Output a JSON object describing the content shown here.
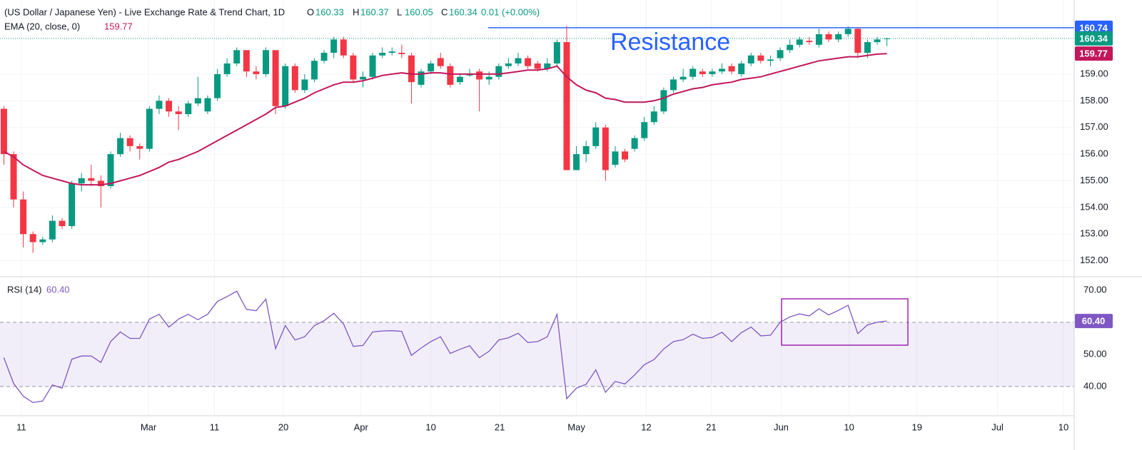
{
  "chart_data": {
    "type": "candlestick",
    "title": "(US Dollar / Japanese Yen) - Live Exchange Rate & Trend Chart, 1D",
    "ohlc_labels": [
      "O",
      "H",
      "L",
      "C"
    ],
    "ohlc_values": [
      160.33,
      160.37,
      160.05,
      160.34
    ],
    "change": 0.01,
    "change_pct": "(+0.00%)",
    "up_color": "#089981",
    "down_color": "#f23645",
    "open": [
      157.7,
      156.0,
      154.3,
      153.0,
      152.7,
      152.8,
      153.5,
      153.3,
      154.9,
      155.1,
      155.0,
      154.8,
      156.0,
      156.6,
      156.3,
      156.2,
      157.7,
      158.0,
      157.6,
      157.5,
      157.9,
      157.6,
      158.1,
      159.0,
      159.4,
      159.9,
      159.1,
      159.0,
      159.9,
      157.8,
      159.3,
      158.4,
      158.8,
      159.5,
      159.8,
      160.3,
      159.7,
      158.8,
      158.9,
      159.7,
      159.8,
      159.8,
      159.7,
      158.6,
      159.1,
      159.6,
      159.3,
      158.7,
      158.95,
      159.1,
      158.8,
      158.9,
      159.3,
      159.4,
      159.6,
      159.4,
      159.2,
      159.4,
      160.2,
      155.4,
      156.0,
      156.3,
      157.0,
      155.6,
      156.1,
      156.2,
      156.6,
      157.2,
      157.6,
      158.4,
      158.8,
      158.9,
      159.1,
      159.0,
      159.1,
      159.3,
      159.0,
      159.4,
      159.7,
      159.5,
      159.6,
      159.9,
      160.1,
      160.25,
      160.1,
      160.5,
      160.3,
      160.5,
      160.7,
      159.8,
      160.2,
      160.33
    ],
    "high": [
      157.8,
      156.1,
      154.6,
      153.1,
      152.9,
      153.7,
      153.6,
      155.0,
      155.3,
      155.6,
      155.2,
      156.1,
      156.8,
      156.7,
      156.4,
      157.8,
      158.2,
      158.1,
      157.8,
      158.0,
      158.9,
      158.2,
      159.2,
      159.6,
      160.0,
      159.9,
      159.3,
      160.0,
      159.9,
      159.4,
      159.4,
      159.0,
      159.6,
      159.9,
      160.4,
      160.4,
      159.8,
      159.1,
      159.8,
      160.0,
      160.0,
      160.1,
      159.8,
      159.2,
      159.5,
      159.8,
      159.4,
      159.0,
      159.2,
      159.2,
      159.1,
      159.4,
      159.6,
      159.8,
      159.7,
      159.5,
      159.6,
      160.3,
      160.8,
      156.3,
      156.5,
      157.2,
      157.1,
      156.3,
      156.2,
      156.7,
      157.4,
      157.8,
      158.5,
      158.9,
      159.2,
      159.3,
      159.2,
      159.2,
      159.4,
      159.4,
      159.5,
      159.8,
      159.8,
      159.7,
      160.0,
      160.3,
      160.4,
      160.4,
      160.7,
      160.6,
      160.6,
      160.8,
      160.75,
      160.3,
      160.4,
      160.37
    ],
    "low": [
      155.6,
      154.0,
      152.5,
      152.3,
      152.6,
      152.7,
      153.2,
      153.2,
      154.6,
      154.8,
      154.0,
      154.7,
      155.9,
      156.1,
      155.8,
      156.1,
      157.5,
      157.4,
      156.9,
      157.4,
      157.8,
      157.5,
      158.0,
      158.9,
      159.3,
      158.9,
      158.8,
      158.9,
      157.5,
      157.7,
      158.3,
      158.3,
      158.7,
      159.4,
      159.6,
      159.6,
      158.7,
      158.5,
      158.8,
      159.6,
      159.7,
      159.6,
      157.9,
      158.5,
      159.0,
      159.2,
      158.5,
      158.6,
      158.9,
      157.6,
      158.6,
      158.8,
      159.2,
      159.3,
      159.2,
      159.1,
      159.1,
      159.3,
      155.5,
      155.5,
      155.7,
      156.2,
      155.0,
      155.5,
      155.7,
      156.1,
      156.5,
      157.1,
      157.5,
      158.3,
      158.7,
      158.8,
      158.9,
      158.9,
      159.0,
      159.0,
      158.9,
      159.3,
      159.4,
      159.3,
      159.5,
      159.8,
      160.0,
      160.1,
      160.0,
      160.2,
      160.2,
      160.4,
      159.6,
      159.6,
      160.1,
      160.05
    ],
    "close": [
      156.0,
      154.3,
      153.0,
      152.7,
      152.8,
      153.5,
      153.3,
      154.9,
      155.1,
      155.0,
      154.8,
      156.0,
      156.6,
      156.3,
      156.2,
      157.7,
      158.0,
      157.6,
      157.5,
      157.9,
      158.1,
      158.1,
      159.0,
      159.4,
      159.9,
      159.1,
      159.0,
      159.9,
      157.8,
      159.3,
      158.4,
      158.8,
      159.5,
      159.8,
      160.3,
      159.7,
      158.8,
      158.9,
      159.7,
      159.8,
      159.85,
      159.75,
      158.7,
      159.1,
      159.4,
      159.3,
      158.6,
      158.9,
      159.0,
      158.8,
      158.9,
      159.3,
      159.4,
      159.6,
      159.3,
      159.2,
      159.4,
      160.2,
      155.4,
      156.0,
      156.3,
      157.0,
      155.4,
      156.1,
      155.8,
      156.6,
      157.2,
      157.6,
      158.4,
      158.8,
      158.9,
      159.2,
      159.0,
      159.1,
      159.2,
      159.1,
      159.4,
      159.7,
      159.5,
      159.55,
      159.9,
      160.1,
      160.3,
      160.2,
      160.5,
      160.3,
      160.5,
      160.7,
      159.8,
      160.2,
      160.3,
      160.34
    ],
    "ema": {
      "name": "EMA (20, close, 0)",
      "value": 159.77,
      "color": "#c2185b",
      "values": [
        156.1,
        155.9,
        155.6,
        155.4,
        155.2,
        155.1,
        155.0,
        154.9,
        154.85,
        154.85,
        154.85,
        154.9,
        155.0,
        155.1,
        155.2,
        155.35,
        155.5,
        155.7,
        155.8,
        155.95,
        156.1,
        156.3,
        156.5,
        156.7,
        156.9,
        157.1,
        157.3,
        157.5,
        157.75,
        157.8,
        157.95,
        158.1,
        158.3,
        158.45,
        158.6,
        158.7,
        158.7,
        158.75,
        158.85,
        158.95,
        159.0,
        159.05,
        159.0,
        159.0,
        159.05,
        159.05,
        159.0,
        159.0,
        159.0,
        159.0,
        159.0,
        159.0,
        159.05,
        159.1,
        159.15,
        159.15,
        159.2,
        159.3,
        158.9,
        158.6,
        158.4,
        158.3,
        158.1,
        158.05,
        157.95,
        157.95,
        157.95,
        158.0,
        158.1,
        158.25,
        158.35,
        158.45,
        158.5,
        158.6,
        158.65,
        158.7,
        158.8,
        158.85,
        158.9,
        159.0,
        159.1,
        159.2,
        159.3,
        159.4,
        159.5,
        159.55,
        159.6,
        159.65,
        159.65,
        159.7,
        159.75,
        159.77
      ]
    },
    "resistance": {
      "label": "Resistance",
      "value": 160.74,
      "color": "#2962ff"
    },
    "xlim": [
      -0.4,
      110.3
    ],
    "xticks": [
      {
        "value": 1.8,
        "label": "11"
      },
      {
        "value": 14.9,
        "label": "Mar"
      },
      {
        "value": 21.7,
        "label": "11"
      },
      {
        "value": 28.8,
        "label": "20"
      },
      {
        "value": 36.8,
        "label": "Apr"
      },
      {
        "value": 44,
        "label": "10"
      },
      {
        "value": 51.1,
        "label": "21"
      },
      {
        "value": 59,
        "label": "May"
      },
      {
        "value": 66.2,
        "label": "12"
      },
      {
        "value": 72.9,
        "label": "21"
      },
      {
        "value": 80.1,
        "label": "Jun"
      },
      {
        "value": 87.1,
        "label": "10"
      },
      {
        "value": 94.1,
        "label": "19"
      },
      {
        "value": 102.4,
        "label": "Jul"
      },
      {
        "value": 109.2,
        "label": "10"
      }
    ],
    "ylim": [
      151.43,
      161.78
    ],
    "yticks": [
      {
        "value": 152,
        "label": "152.00"
      },
      {
        "value": 153,
        "label": "153.00"
      },
      {
        "value": 154,
        "label": "154.00"
      },
      {
        "value": 155,
        "label": "155.00"
      },
      {
        "value": 156,
        "label": "156.00"
      },
      {
        "value": 157,
        "label": "157.00"
      },
      {
        "value": 158,
        "label": "158.00"
      },
      {
        "value": 159,
        "label": "159.00"
      }
    ],
    "grid": true,
    "rsi": {
      "name": "RSI (14)",
      "value": {
        "value": 60.4,
        "label": "60.40"
      },
      "color": "#7e57c2",
      "ylim": [
        30.9,
        74.2
      ],
      "bands": [
        40,
        60
      ],
      "yticks": [
        {
          "value": 40,
          "label": "40.00"
        },
        {
          "value": 50,
          "label": "50.00"
        },
        {
          "value": 70,
          "label": "70.00"
        }
      ],
      "values": [
        49,
        41,
        37,
        35,
        35.5,
        40.5,
        39.5,
        48.5,
        49.5,
        49.5,
        47.5,
        54,
        57,
        55,
        55,
        61,
        62.5,
        58.5,
        61,
        62.5,
        60.8,
        62.5,
        66.5,
        68,
        69.7,
        64,
        63.6,
        67.2,
        51.8,
        59,
        54.5,
        55.5,
        59,
        60.5,
        62.8,
        59.5,
        52.5,
        52.8,
        57,
        57.3,
        57.4,
        57.2,
        49.7,
        52,
        54,
        55.5,
        50.3,
        51.6,
        52.7,
        49,
        51,
        54.5,
        55.2,
        56.6,
        53.7,
        54,
        55.5,
        62.5,
        36.2,
        39.5,
        40.7,
        45.2,
        38.2,
        41.6,
        40.8,
        43.6,
        46.8,
        48.4,
        51.7,
        54,
        54.6,
        56.3,
        55,
        55.3,
        56.9,
        54,
        56.8,
        58.5,
        55.8,
        56,
        60,
        61.7,
        62.6,
        62,
        64.2,
        62.3,
        63.7,
        65.3,
        56.5,
        59.2,
        60,
        60.4
      ]
    }
  }
}
